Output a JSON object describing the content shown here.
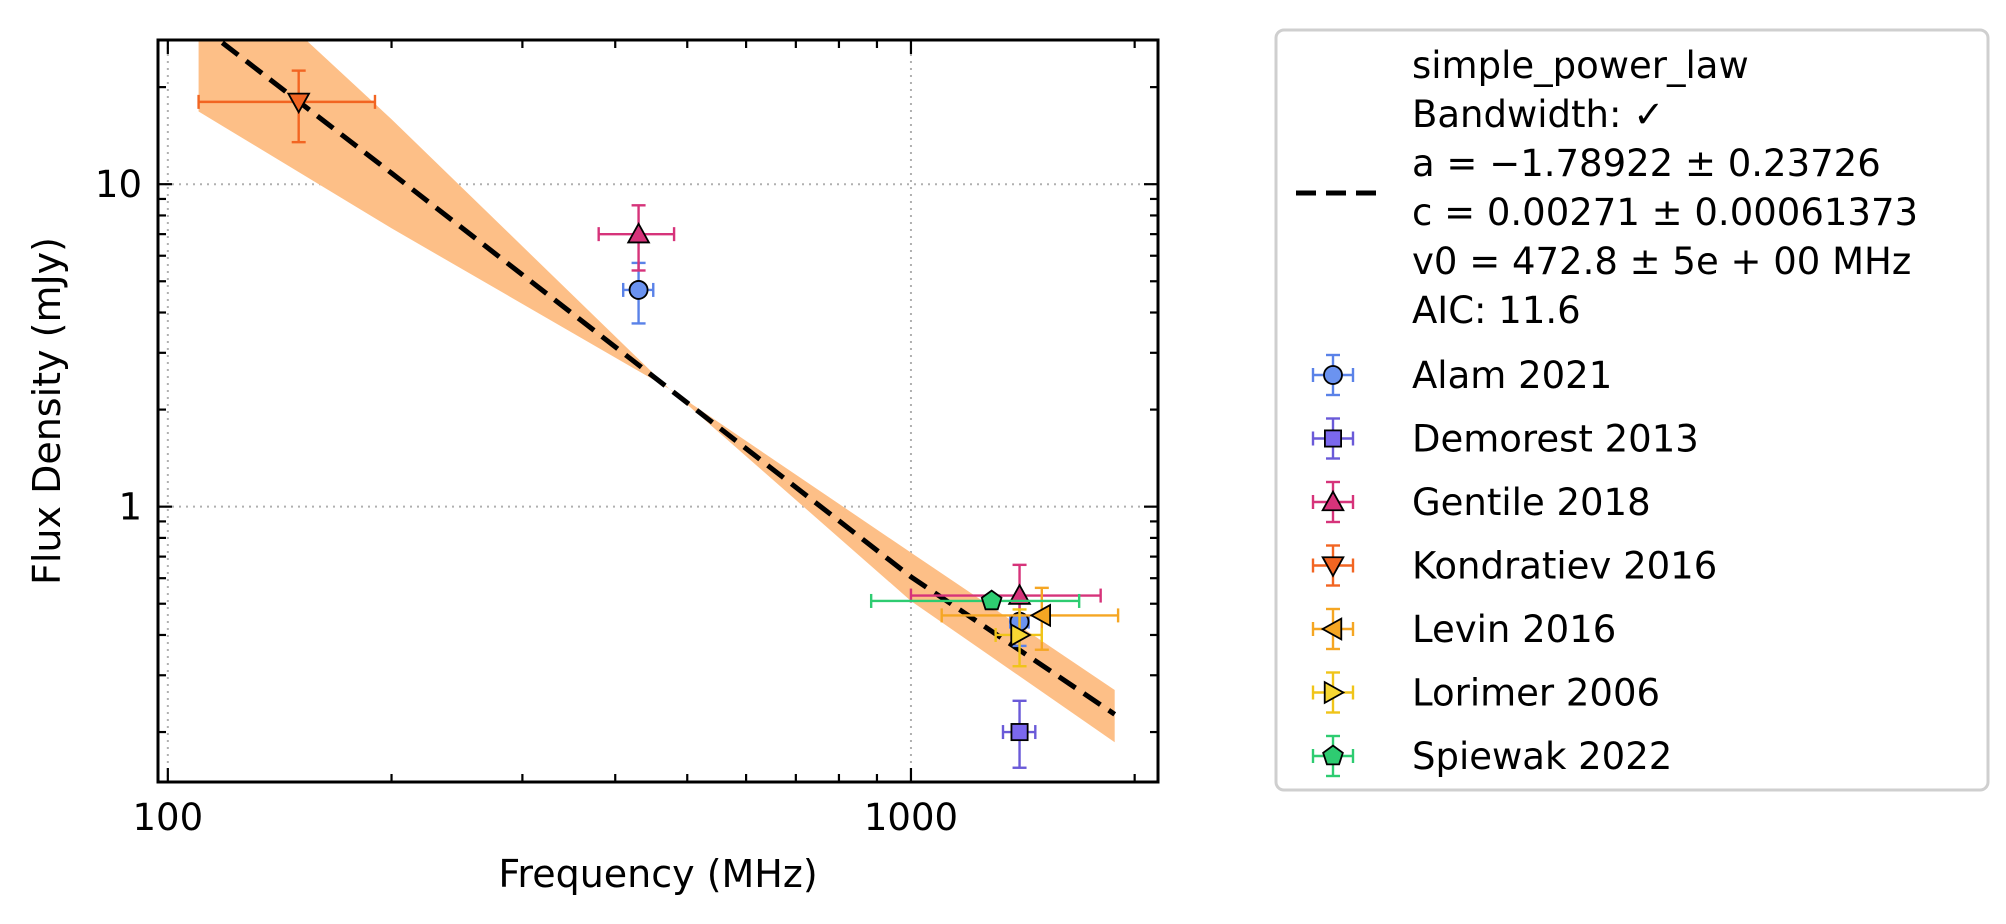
{
  "chart_data": {
    "type": "scatter",
    "xlabel": "Frequency (MHz)",
    "ylabel": "Flux Density (mJy)",
    "xscale": "log",
    "yscale": "log",
    "xlim": [
      97,
      2150
    ],
    "ylim": [
      0.14,
      28
    ],
    "x_ticks": [
      {
        "value": 100,
        "label": "100"
      },
      {
        "value": 1000,
        "label": "1000"
      }
    ],
    "y_ticks": [
      {
        "value": 1,
        "label": "1"
      },
      {
        "value": 10,
        "label": "10"
      }
    ],
    "grid": "dotted, major ticks",
    "legend_position": "outside right",
    "fit": {
      "model": "simple_power_law",
      "lines": [
        "simple_power_law",
        "Bandwidth: ✓",
        "a = −1.78922 ± 0.23726",
        "c = 0.00271 ± 0.00061373",
        "v0 = 472.8 ± 5e + 00 MHz",
        "AIC: 11.6"
      ],
      "a": -1.78922,
      "a_err": 0.23726,
      "v0": 472.8,
      "line_x_range": [
        110,
        1880
      ],
      "curve": [
        {
          "x": 110,
          "y": 31.3,
          "lo": 16.8,
          "hi": 57.0
        },
        {
          "x": 200,
          "y": 10.82,
          "lo": 7.3,
          "hi": 15.9
        },
        {
          "x": 472.8,
          "y": 2.32,
          "lo": 2.32,
          "hi": 2.32
        },
        {
          "x": 1000,
          "y": 0.606,
          "lo": 0.51,
          "hi": 0.72
        },
        {
          "x": 1880,
          "y": 0.227,
          "lo": 0.186,
          "hi": 0.27
        }
      ],
      "line_color": "#000000",
      "band_color": "#fdbf87"
    },
    "series": [
      {
        "name": "Alam 2021",
        "marker": "circle",
        "color": "#6b93f0",
        "edge": "#5a82e8",
        "points": [
          {
            "x": 430,
            "y": 4.7,
            "xerr": [
              20,
              20
            ],
            "yerr": [
              1.0,
              1.0
            ]
          },
          {
            "x": 1400,
            "y": 0.44,
            "xerr": [
              40,
              40
            ],
            "yerr": [
              0.07,
              0.07
            ]
          }
        ]
      },
      {
        "name": "Demorest 2013",
        "marker": "square",
        "color": "#7b68ee",
        "edge": "#6a5ad8",
        "points": [
          {
            "x": 1400,
            "y": 0.2,
            "xerr": [
              70,
              70
            ],
            "yerr": [
              0.045,
              0.05
            ]
          }
        ]
      },
      {
        "name": "Gentile 2018",
        "marker": "triangle-up",
        "color": "#d6337a",
        "edge": "#d6337a",
        "points": [
          {
            "x": 430,
            "y": 7.0,
            "xerr": [
              50,
              50
            ],
            "yerr": [
              1.6,
              1.6
            ]
          },
          {
            "x": 1400,
            "y": 0.53,
            "xerr": [
              400,
              400
            ],
            "yerr": [
              0.13,
              0.13
            ]
          }
        ]
      },
      {
        "name": "Kondratiev 2016",
        "marker": "triangle-down",
        "color": "#f26522",
        "edge": "#f26522",
        "points": [
          {
            "x": 150,
            "y": 18,
            "xerr": [
              40,
              40
            ],
            "yerr": [
              4.5,
              4.5
            ]
          }
        ]
      },
      {
        "name": "Levin 2016",
        "marker": "triangle-left",
        "color": "#f5a623",
        "edge": "#f5a623",
        "points": [
          {
            "x": 1500,
            "y": 0.46,
            "xerr": [
              400,
              400
            ],
            "yerr": [
              0.1,
              0.1
            ]
          }
        ]
      },
      {
        "name": "Lorimer 2006",
        "marker": "triangle-right",
        "color": "#f7d733",
        "edge": "#f0c419",
        "points": [
          {
            "x": 1400,
            "y": 0.4,
            "xerr": [
              100,
              100
            ],
            "yerr": [
              0.08,
              0.08
            ]
          }
        ]
      },
      {
        "name": "Spiewak 2022",
        "marker": "pentagon",
        "color": "#2ecc71",
        "edge": "#2ecc71",
        "points": [
          {
            "x": 1284,
            "y": 0.51,
            "xerr": [
              400,
              400
            ],
            "yerr": [
              0,
              0
            ]
          }
        ]
      }
    ]
  }
}
